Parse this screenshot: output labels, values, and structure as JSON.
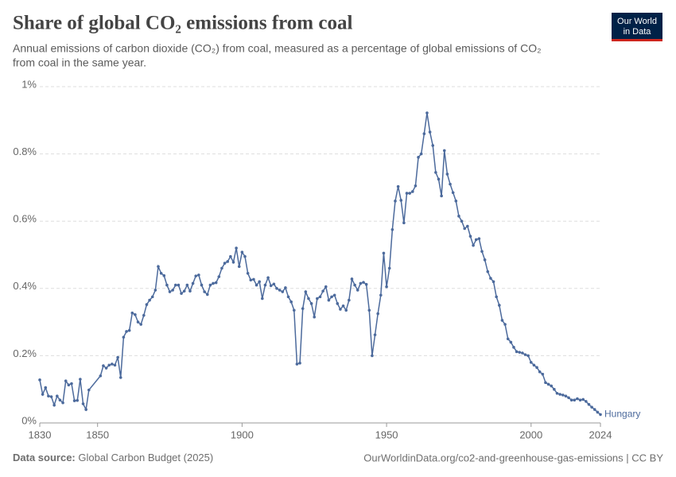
{
  "chart_data": {
    "type": "line",
    "title": "Share of global CO₂ emissions from coal",
    "subtitle": [
      "Annual emissions of carbon dioxide (CO₂) from coal, measured as a percentage of global emissions of CO₂",
      "from coal in the same year."
    ],
    "logo": [
      "Our World",
      "in Data"
    ],
    "source_label": "Data source:",
    "source": "Global Carbon Budget (2025)",
    "url": "OurWorldinData.org/co2-and-greenhouse-gas-emissions | CC BY",
    "x": [
      1830,
      1831,
      1832,
      1833,
      1834,
      1835,
      1836,
      1837,
      1838,
      1839,
      1840,
      1841,
      1842,
      1843,
      1844,
      1845,
      1846,
      1847,
      1851,
      1852,
      1853,
      1854,
      1855,
      1856,
      1857,
      1858,
      1859,
      1860,
      1861,
      1862,
      1863,
      1864,
      1865,
      1866,
      1867,
      1868,
      1869,
      1870,
      1871,
      1872,
      1873,
      1874,
      1875,
      1876,
      1877,
      1878,
      1879,
      1880,
      1881,
      1882,
      1883,
      1884,
      1885,
      1886,
      1887,
      1888,
      1889,
      1890,
      1891,
      1892,
      1893,
      1894,
      1895,
      1896,
      1897,
      1898,
      1899,
      1900,
      1901,
      1902,
      1903,
      1904,
      1905,
      1906,
      1907,
      1908,
      1909,
      1910,
      1911,
      1912,
      1913,
      1914,
      1915,
      1916,
      1917,
      1918,
      1919,
      1920,
      1921,
      1922,
      1923,
      1924,
      1925,
      1926,
      1927,
      1928,
      1929,
      1930,
      1931,
      1932,
      1933,
      1934,
      1935,
      1936,
      1937,
      1938,
      1939,
      1940,
      1941,
      1942,
      1943,
      1944,
      1945,
      1946,
      1947,
      1948,
      1949,
      1950,
      1951,
      1952,
      1953,
      1954,
      1955,
      1956,
      1957,
      1958,
      1959,
      1960,
      1961,
      1962,
      1963,
      1964,
      1965,
      1966,
      1967,
      1968,
      1969,
      1970,
      1971,
      1972,
      1973,
      1974,
      1975,
      1976,
      1977,
      1978,
      1979,
      1980,
      1981,
      1982,
      1983,
      1984,
      1985,
      1986,
      1987,
      1988,
      1989,
      1990,
      1991,
      1992,
      1993,
      1994,
      1995,
      1996,
      1997,
      1998,
      1999,
      2000,
      2001,
      2002,
      2003,
      2004,
      2005,
      2006,
      2007,
      2008,
      2009,
      2010,
      2011,
      2012,
      2013,
      2014,
      2015,
      2016,
      2017,
      2018,
      2019,
      2020,
      2021,
      2022,
      2023,
      2024
    ],
    "series": [
      {
        "name": "Hungary",
        "color": "#4c6a9c",
        "values": [
          0.128,
          0.085,
          0.105,
          0.08,
          0.078,
          0.053,
          0.08,
          0.068,
          0.06,
          0.125,
          0.113,
          0.117,
          0.066,
          0.067,
          0.13,
          0.057,
          0.04,
          0.098,
          0.14,
          0.17,
          0.163,
          0.172,
          0.175,
          0.172,
          0.195,
          0.135,
          0.255,
          0.272,
          0.275,
          0.327,
          0.322,
          0.3,
          0.293,
          0.32,
          0.352,
          0.365,
          0.375,
          0.395,
          0.465,
          0.445,
          0.438,
          0.41,
          0.39,
          0.395,
          0.41,
          0.41,
          0.385,
          0.392,
          0.41,
          0.392,
          0.415,
          0.437,
          0.44,
          0.41,
          0.39,
          0.382,
          0.41,
          0.415,
          0.417,
          0.435,
          0.46,
          0.475,
          0.48,
          0.495,
          0.478,
          0.52,
          0.465,
          0.508,
          0.495,
          0.445,
          0.425,
          0.427,
          0.41,
          0.42,
          0.37,
          0.41,
          0.432,
          0.408,
          0.413,
          0.4,
          0.395,
          0.39,
          0.402,
          0.375,
          0.36,
          0.335,
          0.175,
          0.178,
          0.34,
          0.39,
          0.37,
          0.355,
          0.315,
          0.37,
          0.375,
          0.392,
          0.405,
          0.365,
          0.375,
          0.38,
          0.355,
          0.338,
          0.348,
          0.335,
          0.365,
          0.428,
          0.41,
          0.395,
          0.415,
          0.418,
          0.412,
          0.335,
          0.2,
          0.262,
          0.325,
          0.38,
          0.505,
          0.405,
          0.46,
          0.575,
          0.66,
          0.703,
          0.662,
          0.595,
          0.683,
          0.683,
          0.688,
          0.705,
          0.79,
          0.8,
          0.86,
          0.922,
          0.865,
          0.825,
          0.745,
          0.725,
          0.675,
          0.81,
          0.74,
          0.71,
          0.685,
          0.66,
          0.615,
          0.6,
          0.578,
          0.585,
          0.555,
          0.528,
          0.545,
          0.548,
          0.51,
          0.485,
          0.45,
          0.43,
          0.42,
          0.375,
          0.35,
          0.305,
          0.293,
          0.25,
          0.24,
          0.225,
          0.212,
          0.21,
          0.208,
          0.203,
          0.2,
          0.18,
          0.172,
          0.165,
          0.152,
          0.145,
          0.12,
          0.115,
          0.11,
          0.1,
          0.088,
          0.085,
          0.083,
          0.08,
          0.075,
          0.068,
          0.068,
          0.072,
          0.068,
          0.07,
          0.064,
          0.055,
          0.047,
          0.04,
          0.032,
          0.025
        ]
      }
    ],
    "xlim": [
      1830,
      2024
    ],
    "xticks": [
      1830,
      1850,
      1900,
      1950,
      2000,
      2024
    ],
    "ylim": [
      0,
      1
    ],
    "yticks": [
      {
        "value": 0,
        "label": "0%"
      },
      {
        "value": 0.2,
        "label": "0.2%"
      },
      {
        "value": 0.4,
        "label": "0.4%"
      },
      {
        "value": 0.6,
        "label": "0.6%"
      },
      {
        "value": 0.8,
        "label": "0.8%"
      },
      {
        "value": 1,
        "label": "1%"
      }
    ],
    "grid": true
  }
}
